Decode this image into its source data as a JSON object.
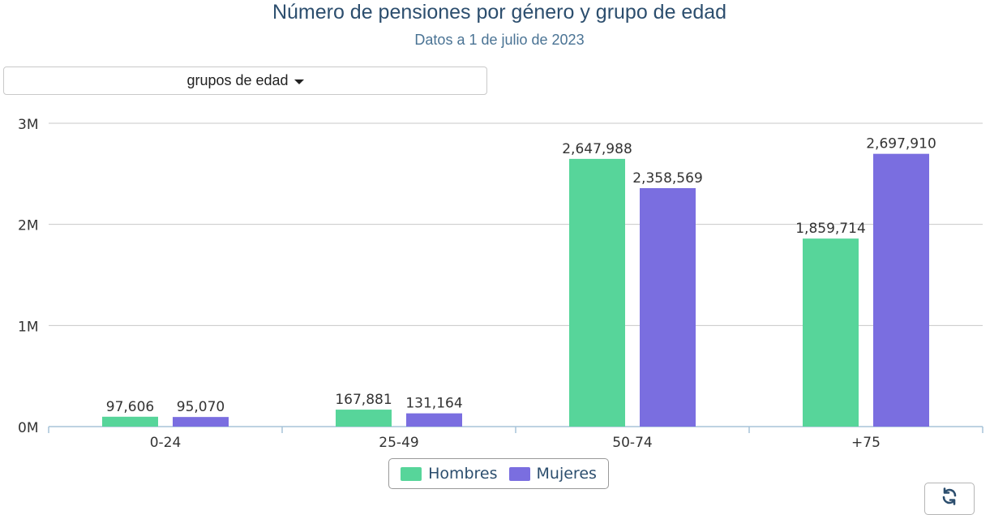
{
  "header": {
    "title": "Número de pensiones por género y grupo de edad",
    "subtitle": "Datos a 1 de julio de 2023"
  },
  "selector": {
    "label": "grupos de edad"
  },
  "colors": {
    "hombres": "#57d59a",
    "mujeres": "#7a6ee0",
    "grid": "#c8c8c8",
    "axis": "#a7c3d9",
    "text": "#333333"
  },
  "chart_data": {
    "type": "bar",
    "categories": [
      "0-24",
      "25-49",
      "50-74",
      "+75"
    ],
    "series": [
      {
        "name": "Hombres",
        "values": [
          97606,
          167881,
          2647988,
          1859714
        ],
        "labels": [
          "97,606",
          "167,881",
          "2,647,988",
          "1,859,714"
        ]
      },
      {
        "name": "Mujeres",
        "values": [
          95070,
          131164,
          2358569,
          2697910
        ],
        "labels": [
          "95,070",
          "131,164",
          "2,358,569",
          "2,697,910"
        ]
      }
    ],
    "y_ticks": [
      0,
      1000000,
      2000000,
      3000000
    ],
    "y_tick_labels": [
      "0M",
      "1M",
      "2M",
      "3M"
    ],
    "ylim": [
      0,
      3000000
    ],
    "grid": true,
    "legend": "bottom-center"
  }
}
